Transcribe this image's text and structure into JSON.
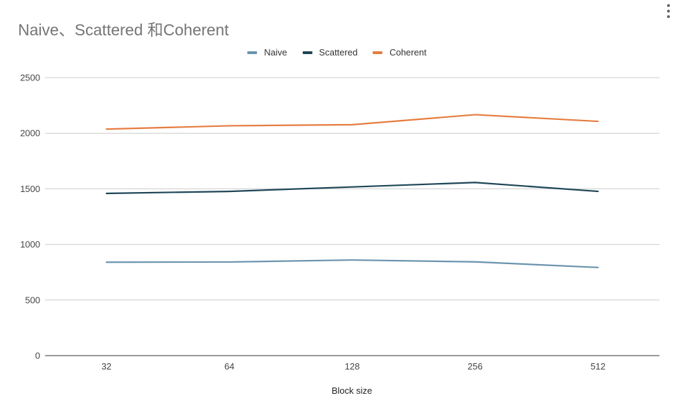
{
  "chart_title": "Naive、Scattered 和Coherent",
  "chart_data": {
    "type": "line",
    "title": "Naive、Scattered 和Coherent",
    "xlabel": "Block size",
    "ylabel": "",
    "categories": [
      "32",
      "64",
      "128",
      "256",
      "512"
    ],
    "ylim": [
      0,
      2500
    ],
    "yticks": [
      0,
      500,
      1000,
      1500,
      2000,
      2500
    ],
    "grid": true,
    "legend_position": "top",
    "series": [
      {
        "name": "Naive",
        "color": "#6a93ad",
        "values": [
          840,
          842,
          860,
          843,
          793
        ]
      },
      {
        "name": "Scattered",
        "color": "#1d4557",
        "values": [
          1459,
          1477,
          1517,
          1557,
          1477
        ]
      },
      {
        "name": "Coherent",
        "color": "#e57c3f",
        "values": [
          2037,
          2067,
          2077,
          2167,
          2107
        ]
      }
    ]
  }
}
